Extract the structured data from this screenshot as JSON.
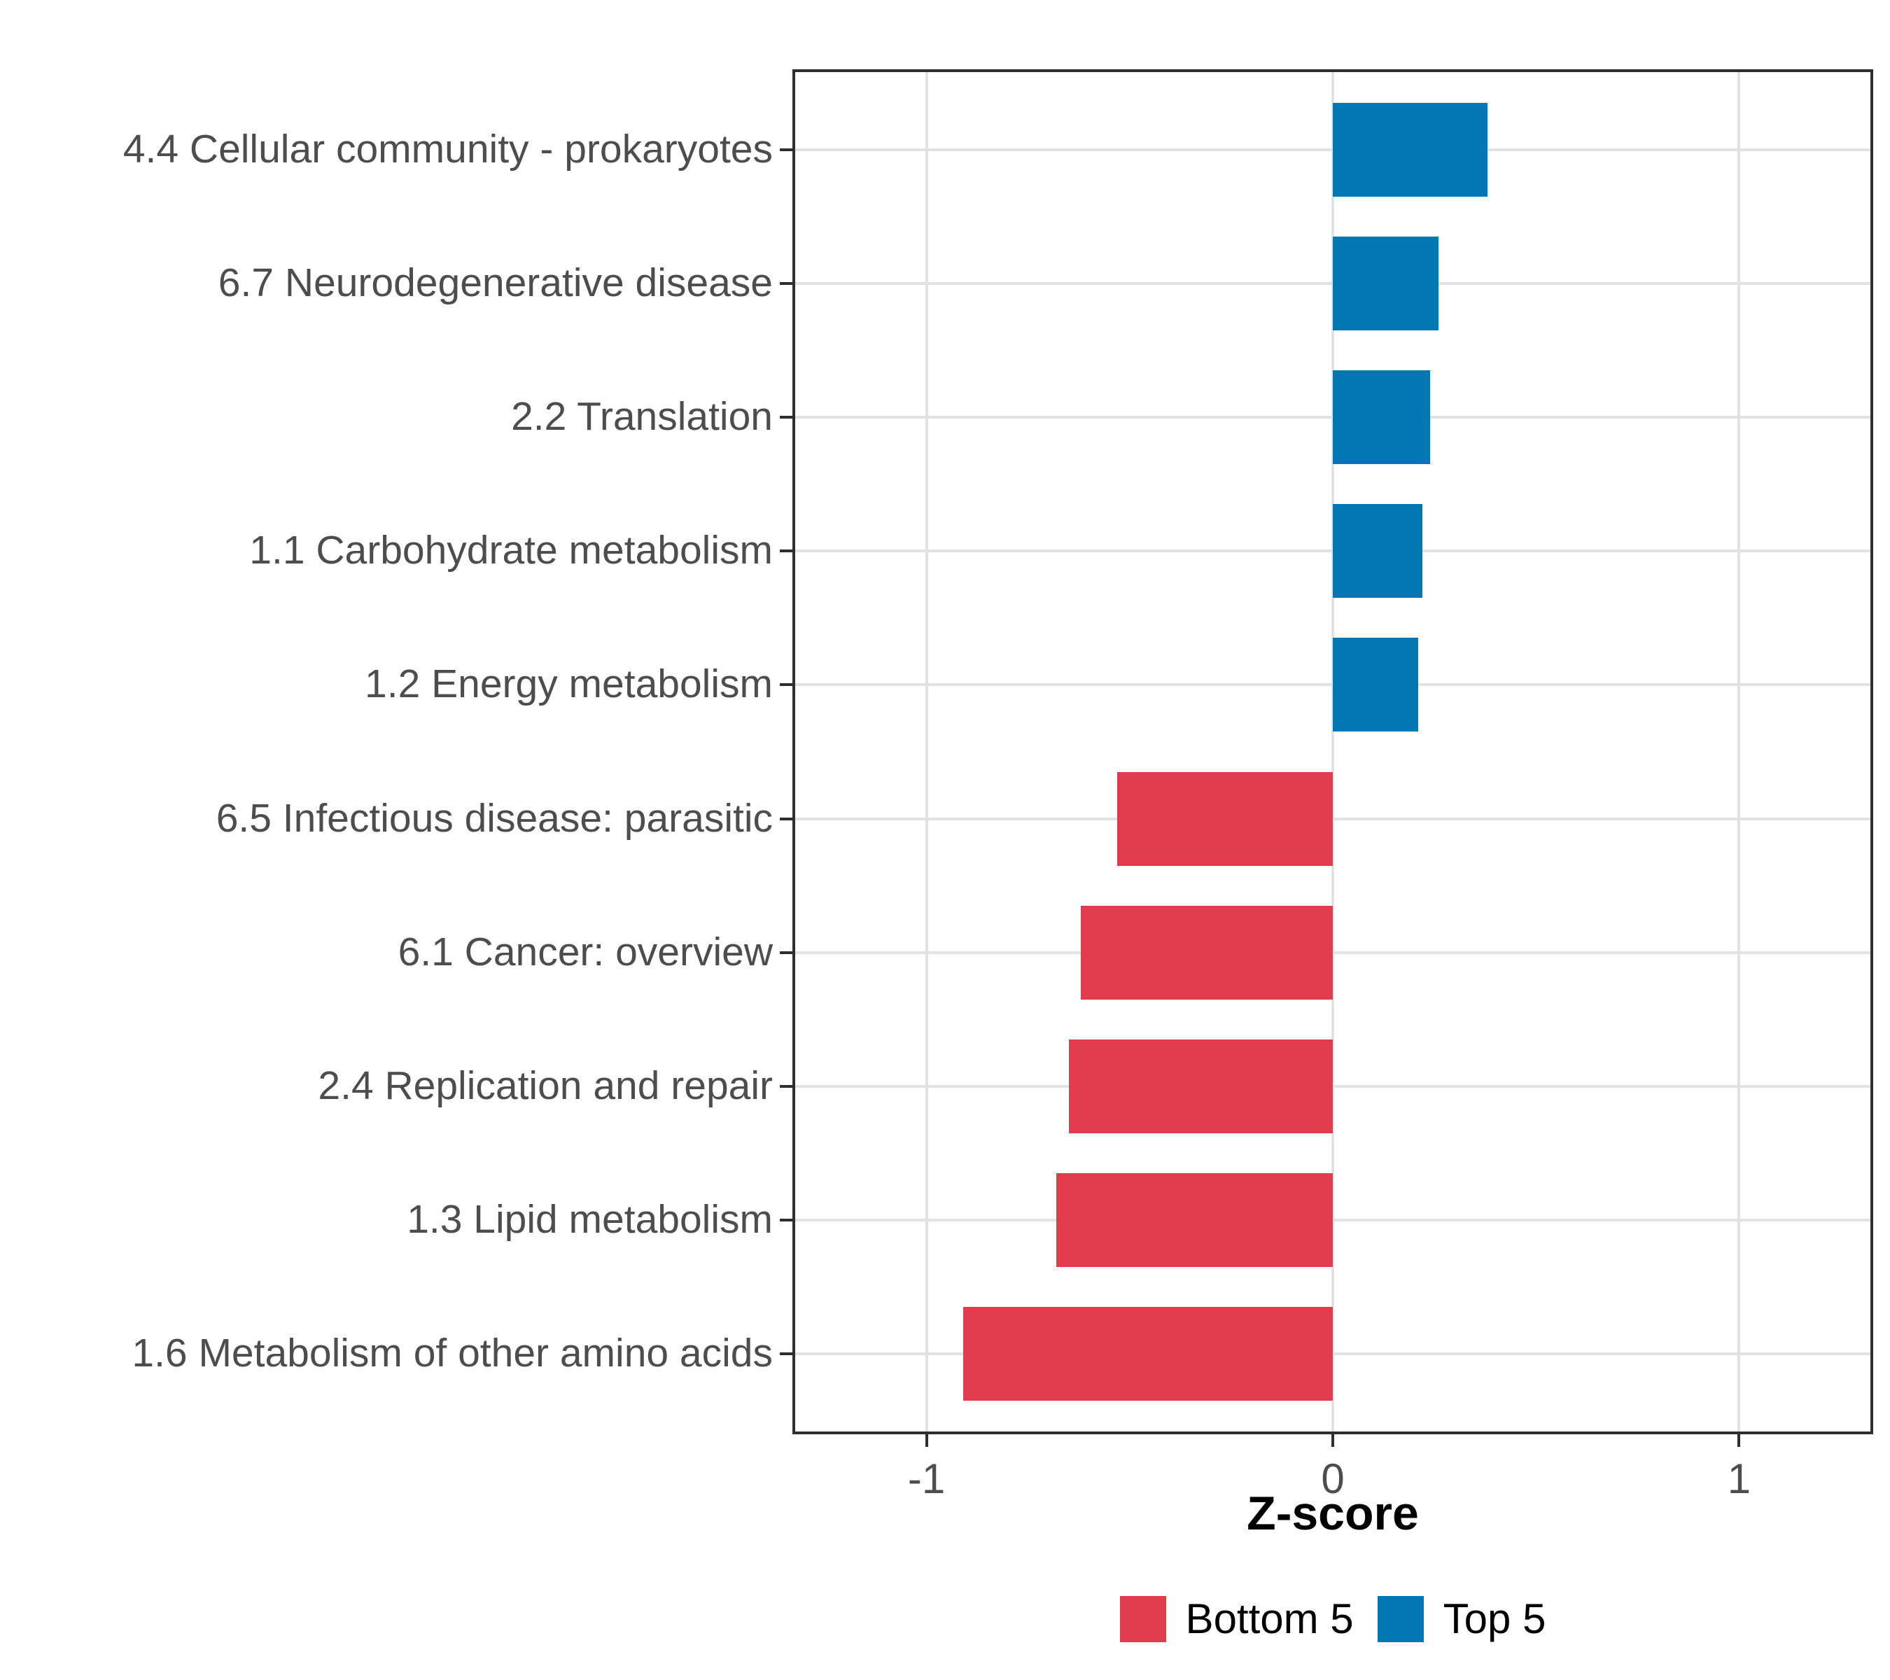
{
  "chart_data": {
    "type": "bar",
    "orientation": "horizontal",
    "title": "",
    "xlabel": "Z-score",
    "ylabel": "",
    "xlim": [
      -1.33,
      1.33
    ],
    "x_ticks": [
      -1,
      0,
      1
    ],
    "x_tick_labels": [
      "-1",
      "0",
      "1"
    ],
    "grid": true,
    "legend_position": "bottom",
    "categories": [
      "4.4 Cellular community - prokaryotes",
      "6.7 Neurodegenerative disease",
      "2.2 Translation",
      "1.1 Carbohydrate metabolism",
      "1.2 Energy metabolism",
      "6.5 Infectious disease: parasitic",
      "6.1 Cancer: overview",
      "2.4 Replication and repair",
      "1.3 Lipid metabolism",
      "1.6 Metabolism of other amino acids"
    ],
    "values": [
      0.38,
      0.26,
      0.24,
      0.22,
      0.21,
      -0.53,
      -0.62,
      -0.65,
      -0.68,
      -0.91
    ],
    "groups": [
      "Top 5",
      "Top 5",
      "Top 5",
      "Top 5",
      "Top 5",
      "Bottom 5",
      "Bottom 5",
      "Bottom 5",
      "Bottom 5",
      "Bottom 5"
    ],
    "colors": {
      "Bottom 5": "#e23b4c",
      "Top 5": "#0376b5"
    },
    "legend": [
      {
        "label": "Bottom 5",
        "color": "#e23b4c"
      },
      {
        "label": "Top 5",
        "color": "#0376b5"
      }
    ]
  }
}
